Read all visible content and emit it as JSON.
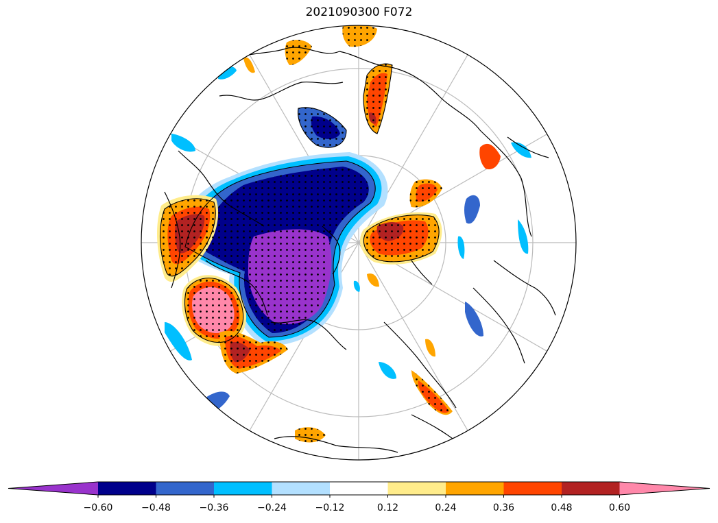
{
  "title": "2021090300 F072",
  "colorbar": {
    "colors": [
      "#9933cc",
      "#00008b",
      "#3366cc",
      "#00bfff",
      "#b3e0ff",
      "#ffffff",
      "#ffec8b",
      "#ffa500",
      "#ff4500",
      "#b22222",
      "#ff88aa"
    ],
    "ticks": [
      "−0.60",
      "−0.48",
      "−0.36",
      "−0.24",
      "−0.12",
      "0.12",
      "0.24",
      "0.36",
      "0.48",
      "0.60"
    ]
  },
  "map_colors": {
    "purple": "#9933cc",
    "navy": "#00008b",
    "blue": "#3366cc",
    "cyan": "#00bfff",
    "lightblue": "#b3e0ff",
    "yellow": "#ffec8b",
    "orange": "#ffa500",
    "redorange": "#ff4500",
    "darkred": "#b22222",
    "pink": "#ff88aa"
  }
}
